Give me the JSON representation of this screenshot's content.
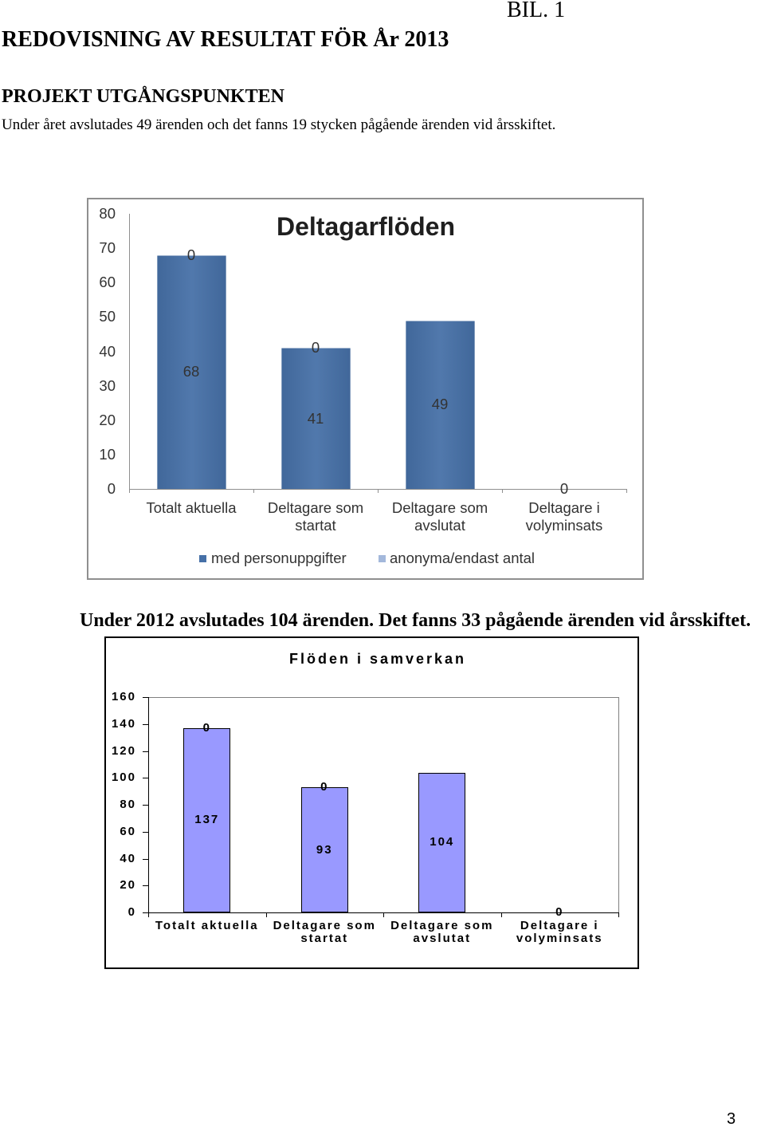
{
  "header": {
    "attachment_label": "BIL. 1",
    "report_title": "REDOVISNING AV RESULTAT FÖR År 2013",
    "section_heading": "PROJEKT UTGÅNGSPUNKTEN",
    "intro_text": "Under året avslutades 49 ärenden och det fanns 19 stycken pågående ärenden vid årsskiftet."
  },
  "summary_2012": "Under 2012 avslutades 104 ärenden. Det fanns 33 pågående ärenden vid årsskiftet.",
  "page_number": "3",
  "chart_data": [
    {
      "type": "bar",
      "stacked": true,
      "title": "Deltagarflöden",
      "categories": [
        "Totalt aktuella",
        "Deltagare som startat",
        "Deltagare som avslutat",
        "Deltagare i volyminsats"
      ],
      "series": [
        {
          "name": "med personuppgifter",
          "values": [
            68,
            41,
            49,
            0
          ],
          "color": "#4670A7"
        },
        {
          "name": "anonyma/endast antal",
          "values": [
            0,
            0,
            null,
            null
          ],
          "color": "#A3B8DB"
        }
      ],
      "ylim": [
        0,
        80
      ],
      "yticks": [
        0,
        10,
        20,
        30,
        40,
        50,
        60,
        70,
        80
      ],
      "grid": false,
      "legend": "bottom"
    },
    {
      "type": "bar",
      "stacked": true,
      "title": "Flöden i samverkan",
      "categories": [
        "Totalt aktuella",
        "Deltagare som startat",
        "Deltagare som avslutat",
        "Deltagare i volyminsats"
      ],
      "series": [
        {
          "values": [
            137,
            93,
            104,
            0
          ],
          "color": "#9999FF"
        },
        {
          "values": [
            0,
            0,
            null,
            null
          ]
        }
      ],
      "ylim": [
        0,
        160
      ],
      "yticks": [
        0,
        20,
        40,
        60,
        80,
        100,
        120,
        140,
        160
      ],
      "grid": false,
      "legend": "none"
    }
  ]
}
